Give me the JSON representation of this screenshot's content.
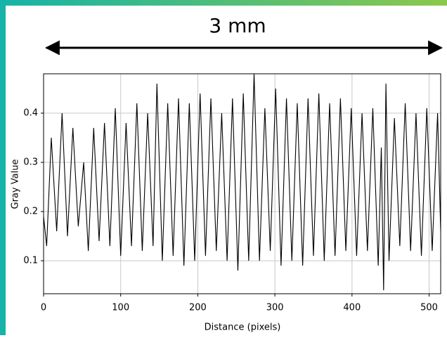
{
  "chart_data": {
    "type": "line",
    "annotation": "3 mm",
    "xlabel": "Distance (pixels)",
    "ylabel": "Gray Value",
    "color": "#000000",
    "grid": true,
    "xlim": [
      0,
      515
    ],
    "ylim": [
      0.033,
      0.48
    ],
    "xticks": [
      0,
      100,
      200,
      300,
      400,
      500
    ],
    "yticks": [
      0.1,
      0.2,
      0.3,
      0.4
    ],
    "x": [
      0,
      4,
      10,
      17,
      24,
      31,
      38,
      45,
      52,
      58,
      65,
      72,
      79,
      86,
      93,
      100,
      107,
      114,
      121,
      128,
      135,
      142,
      147,
      154,
      161,
      168,
      175,
      182,
      189,
      196,
      203,
      210,
      217,
      224,
      231,
      238,
      245,
      252,
      259,
      266,
      273,
      280,
      287,
      294,
      301,
      308,
      315,
      322,
      329,
      336,
      343,
      350,
      357,
      364,
      371,
      378,
      385,
      392,
      399,
      406,
      413,
      420,
      427,
      434,
      438,
      441,
      444,
      448,
      455,
      462,
      469,
      476,
      483,
      490,
      497,
      504,
      511,
      515
    ],
    "values": [
      0.19,
      0.13,
      0.35,
      0.16,
      0.4,
      0.15,
      0.37,
      0.17,
      0.3,
      0.12,
      0.37,
      0.14,
      0.38,
      0.13,
      0.41,
      0.11,
      0.38,
      0.13,
      0.42,
      0.12,
      0.4,
      0.13,
      0.46,
      0.1,
      0.42,
      0.11,
      0.43,
      0.09,
      0.42,
      0.1,
      0.44,
      0.11,
      0.43,
      0.12,
      0.4,
      0.1,
      0.43,
      0.08,
      0.44,
      0.1,
      0.48,
      0.1,
      0.41,
      0.12,
      0.45,
      0.09,
      0.43,
      0.1,
      0.42,
      0.09,
      0.43,
      0.11,
      0.44,
      0.1,
      0.42,
      0.11,
      0.43,
      0.12,
      0.41,
      0.11,
      0.4,
      0.12,
      0.41,
      0.09,
      0.33,
      0.04,
      0.46,
      0.1,
      0.39,
      0.13,
      0.42,
      0.12,
      0.4,
      0.11,
      0.41,
      0.12,
      0.4,
      0.16
    ]
  }
}
